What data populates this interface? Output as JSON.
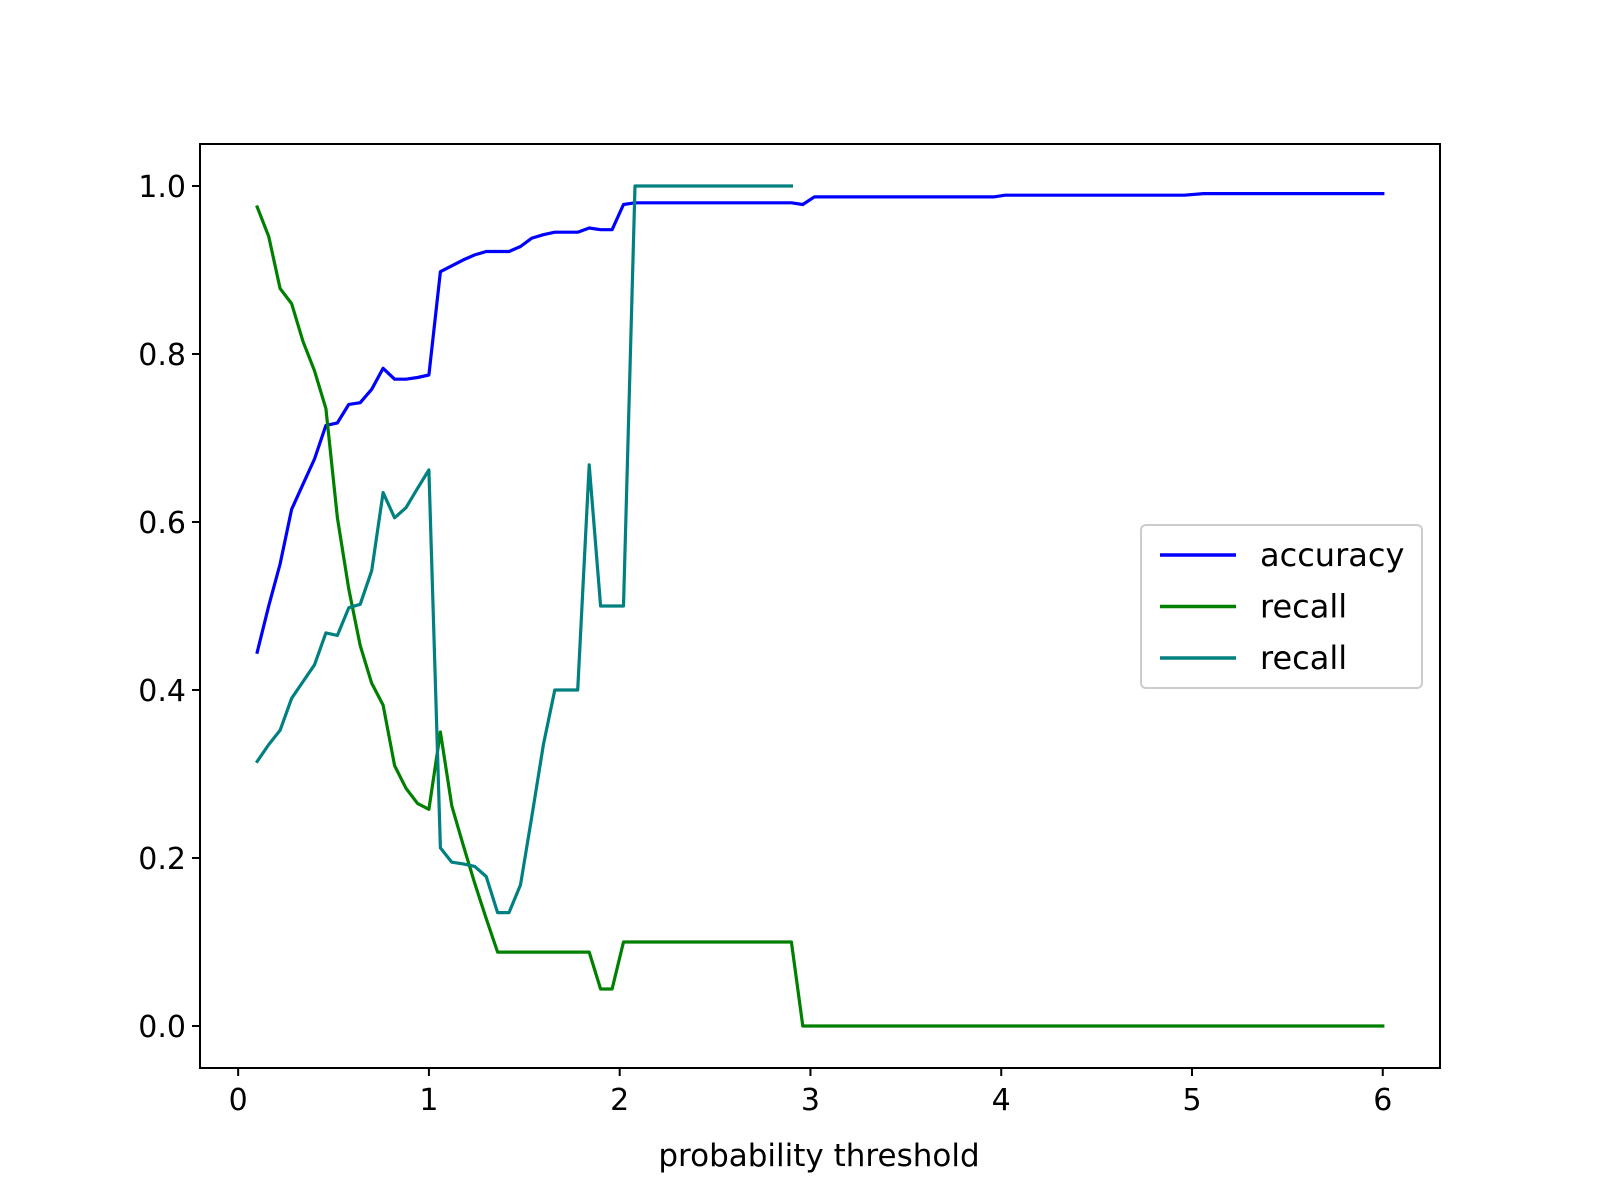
{
  "chart_data": {
    "type": "line",
    "title": "",
    "xlabel": "probability threshold",
    "ylabel": "",
    "xlim": [
      -0.2,
      6.3
    ],
    "ylim": [
      -0.05,
      1.05
    ],
    "x_ticks": [
      "0",
      "1",
      "2",
      "3",
      "4",
      "5",
      "6"
    ],
    "y_ticks": [
      "0.0",
      "0.2",
      "0.4",
      "0.6",
      "0.8",
      "1.0"
    ],
    "grid": false,
    "legend_position": "center-right",
    "series": [
      {
        "name": "accuracy",
        "color": "#0000ff",
        "x": [
          0.1,
          0.16,
          0.22,
          0.28,
          0.34,
          0.4,
          0.46,
          0.52,
          0.58,
          0.64,
          0.7,
          0.76,
          0.82,
          0.88,
          0.94,
          1.0,
          1.06,
          1.12,
          1.18,
          1.24,
          1.3,
          1.36,
          1.42,
          1.48,
          1.54,
          1.6,
          1.66,
          1.72,
          1.78,
          1.84,
          1.9,
          1.96,
          2.02,
          2.08,
          2.2,
          2.4,
          2.6,
          2.8,
          2.9,
          2.96,
          3.02,
          3.2,
          3.5,
          3.8,
          3.96,
          4.02,
          4.5,
          4.96,
          5.06,
          5.5,
          6.0
        ],
        "y": [
          0.445,
          0.5,
          0.55,
          0.615,
          0.645,
          0.675,
          0.715,
          0.718,
          0.74,
          0.742,
          0.758,
          0.783,
          0.77,
          0.77,
          0.772,
          0.775,
          0.898,
          0.905,
          0.912,
          0.918,
          0.922,
          0.922,
          0.922,
          0.928,
          0.938,
          0.942,
          0.945,
          0.945,
          0.945,
          0.95,
          0.948,
          0.948,
          0.978,
          0.98,
          0.98,
          0.98,
          0.98,
          0.98,
          0.98,
          0.978,
          0.987,
          0.987,
          0.987,
          0.987,
          0.987,
          0.989,
          0.989,
          0.989,
          0.991,
          0.991,
          0.991
        ]
      },
      {
        "name": "recall",
        "color": "#008000",
        "x": [
          0.1,
          0.16,
          0.22,
          0.28,
          0.34,
          0.4,
          0.46,
          0.52,
          0.58,
          0.64,
          0.7,
          0.76,
          0.82,
          0.88,
          0.94,
          1.0,
          1.06,
          1.12,
          1.18,
          1.24,
          1.3,
          1.36,
          1.42,
          1.48,
          1.54,
          1.6,
          1.66,
          1.72,
          1.78,
          1.84,
          1.9,
          1.96,
          2.02,
          2.08,
          2.2,
          2.4,
          2.6,
          2.8,
          2.9,
          2.96,
          3.02,
          3.5,
          4.0,
          4.5,
          5.0,
          5.5,
          6.0
        ],
        "y": [
          0.975,
          0.94,
          0.878,
          0.86,
          0.815,
          0.78,
          0.735,
          0.605,
          0.52,
          0.453,
          0.408,
          0.382,
          0.31,
          0.283,
          0.265,
          0.258,
          0.35,
          0.262,
          0.215,
          0.17,
          0.128,
          0.088,
          0.088,
          0.088,
          0.088,
          0.088,
          0.088,
          0.088,
          0.088,
          0.088,
          0.044,
          0.044,
          0.1,
          0.1,
          0.1,
          0.1,
          0.1,
          0.1,
          0.1,
          0.0,
          0.0,
          0.0,
          0.0,
          0.0,
          0.0,
          0.0,
          0.0
        ]
      },
      {
        "name": "recall",
        "color": "#008080",
        "x": [
          0.1,
          0.16,
          0.22,
          0.28,
          0.34,
          0.4,
          0.46,
          0.52,
          0.58,
          0.64,
          0.7,
          0.76,
          0.82,
          0.88,
          0.94,
          1.0,
          1.06,
          1.12,
          1.18,
          1.24,
          1.3,
          1.36,
          1.42,
          1.48,
          1.54,
          1.6,
          1.66,
          1.72,
          1.78,
          1.84,
          1.9,
          1.96,
          2.02,
          2.08,
          2.2,
          2.4,
          2.6,
          2.8,
          2.9
        ],
        "y": [
          0.315,
          0.335,
          0.352,
          0.39,
          0.41,
          0.43,
          0.468,
          0.465,
          0.498,
          0.502,
          0.542,
          0.635,
          0.605,
          0.617,
          0.64,
          0.662,
          0.212,
          0.195,
          0.193,
          0.19,
          0.178,
          0.135,
          0.135,
          0.168,
          0.25,
          0.335,
          0.4,
          0.4,
          0.4,
          0.668,
          0.5,
          0.5,
          0.5,
          1.0,
          1.0,
          1.0,
          1.0,
          1.0,
          1.0
        ]
      }
    ]
  }
}
